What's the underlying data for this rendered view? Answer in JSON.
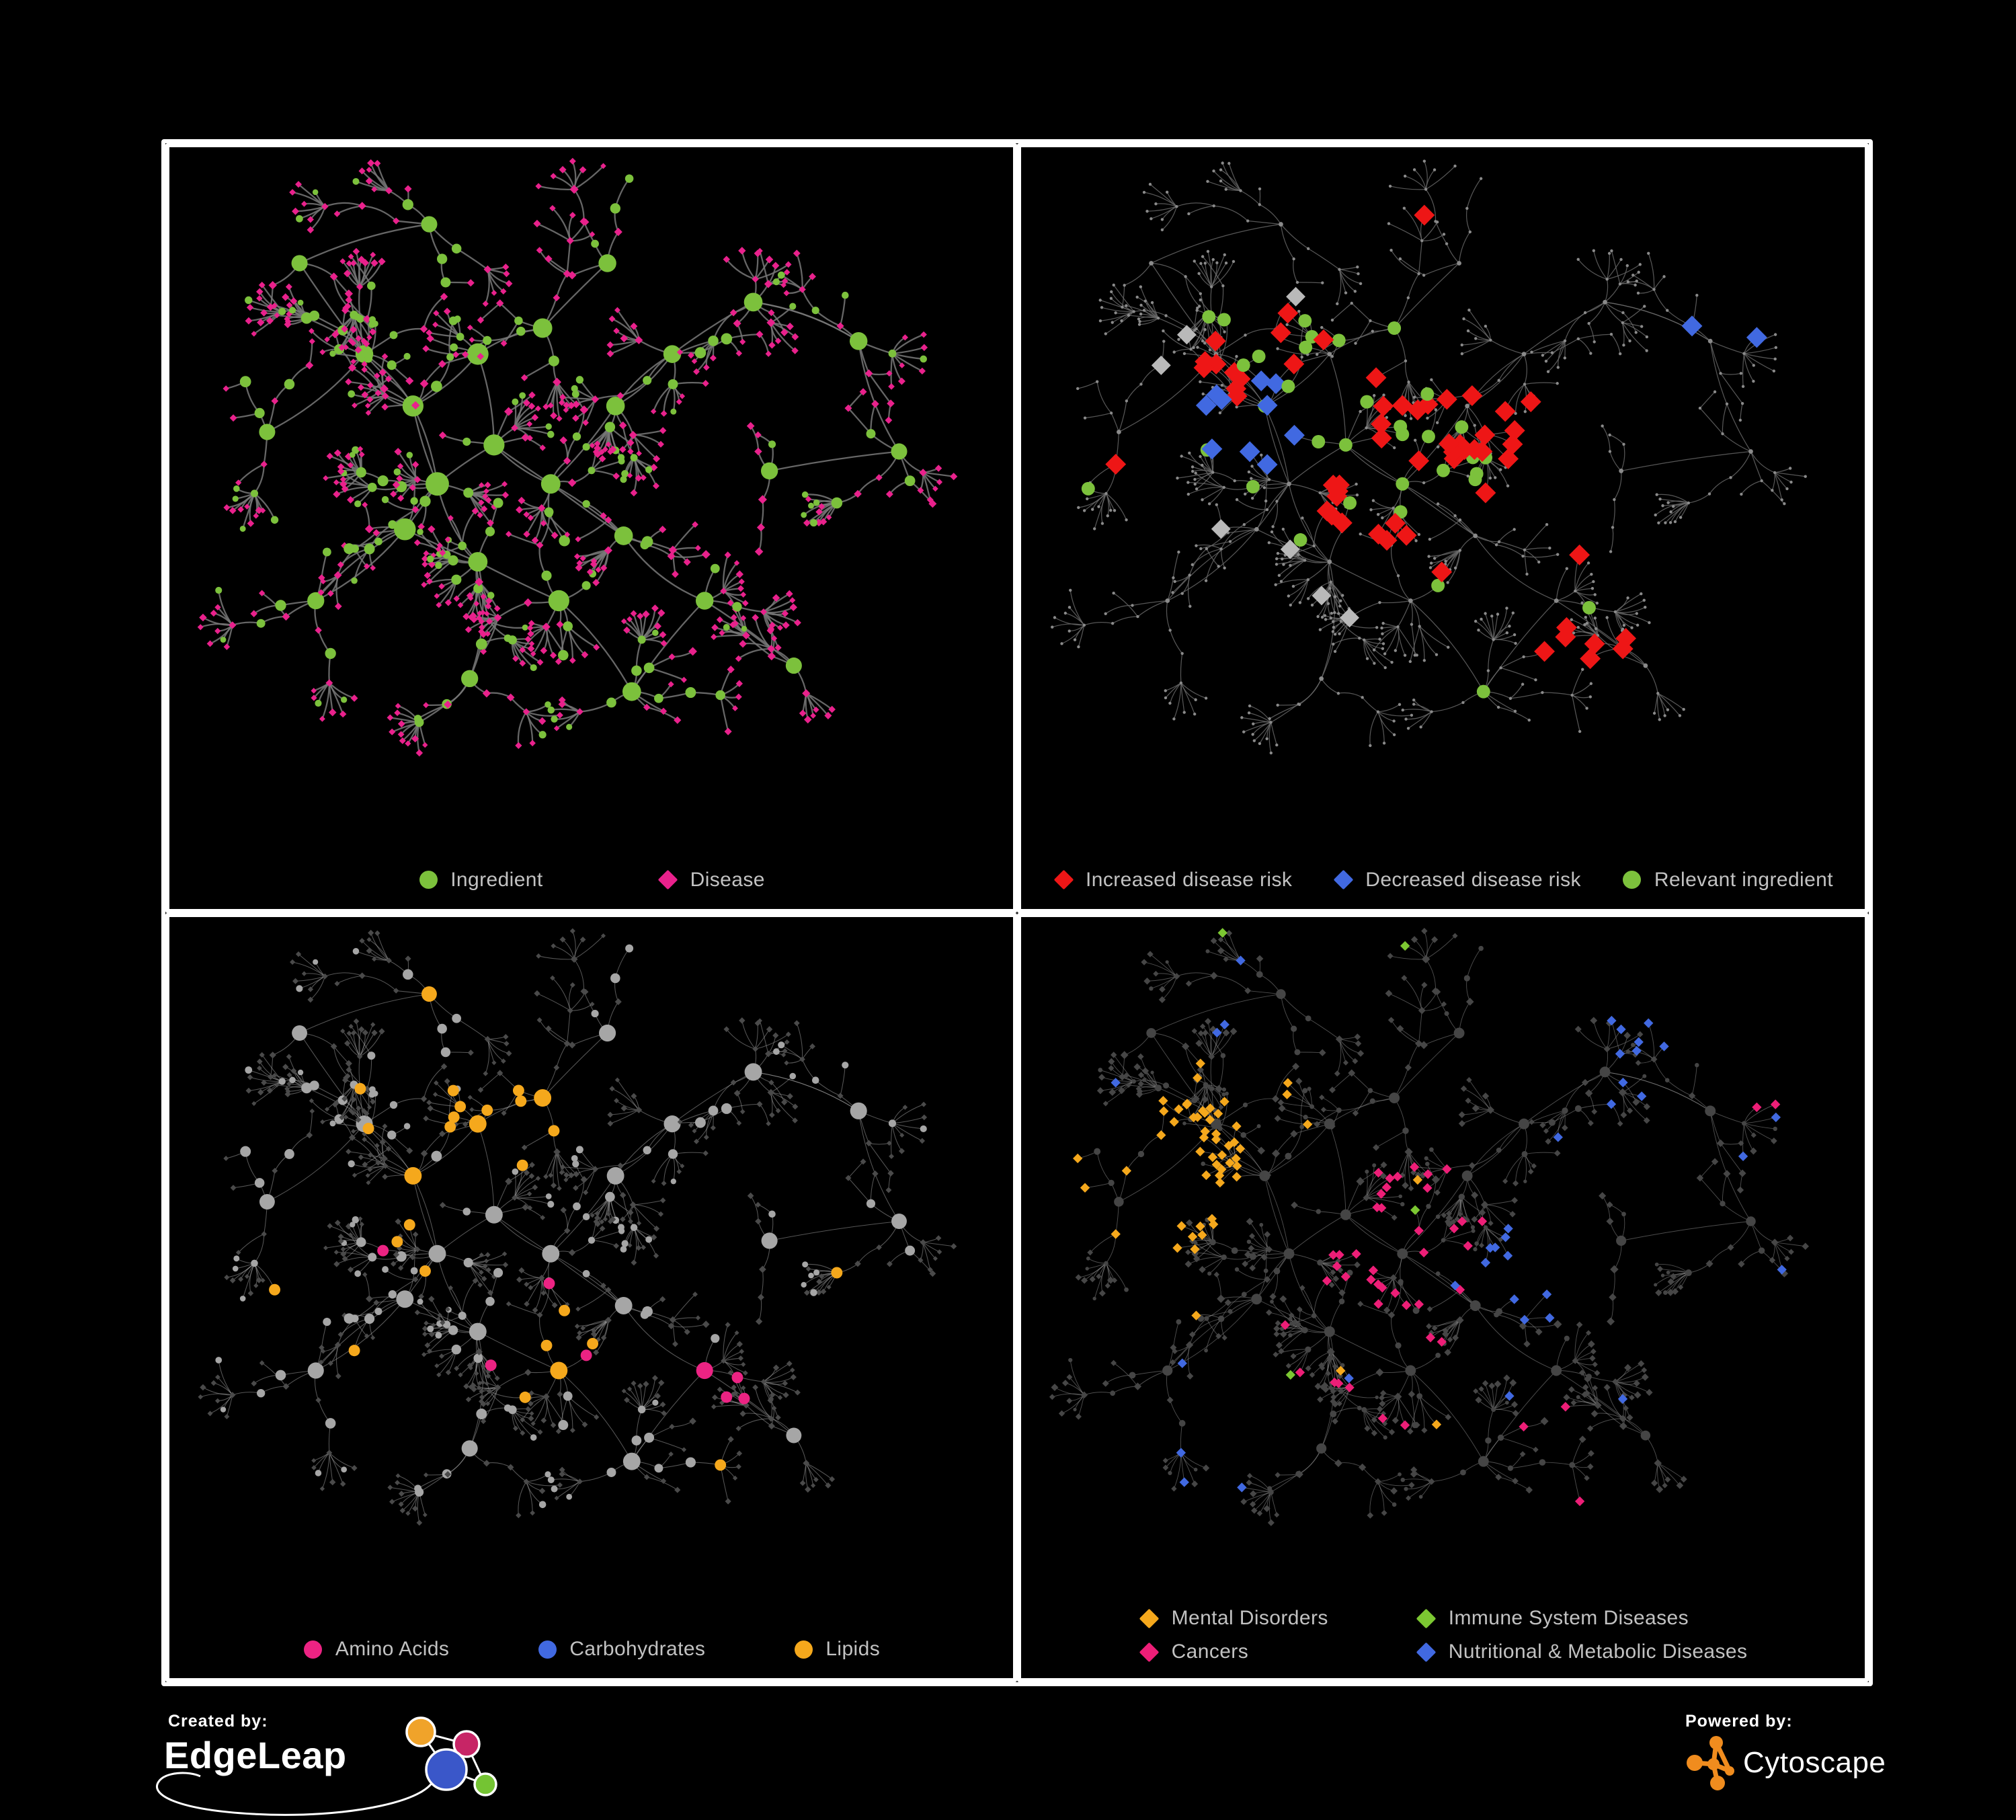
{
  "figure": {
    "background": "#000000",
    "frame_color": "#FFFFFF"
  },
  "footer": {
    "created_by": "Created by:",
    "edgeleap": "EdgeLeap",
    "powered_by": "Powered by:",
    "cytoscape": "Cytoscape",
    "edgeleap_logo_colors": {
      "yellow": "#F0A32A",
      "magenta": "#C72566",
      "blue": "#3A57C9",
      "green": "#74C433"
    },
    "cytoscape_logo_color": "#F08C1E"
  },
  "chart_data": {
    "type": "network",
    "layout": "four-panel grid, same force-directed ingredient-disease network styled four ways on black background",
    "topology": {
      "seed": 1337,
      "hubs": [
        [
          0.36,
          0.3,
          1.25
        ],
        [
          0.44,
          0.26,
          1.0
        ],
        [
          0.28,
          0.38,
          1.2
        ],
        [
          0.22,
          0.3,
          0.8
        ],
        [
          0.31,
          0.5,
          1.5
        ],
        [
          0.27,
          0.57,
          1.3
        ],
        [
          0.38,
          0.44,
          1.2
        ],
        [
          0.45,
          0.5,
          1.0
        ],
        [
          0.36,
          0.62,
          1.0
        ],
        [
          0.46,
          0.68,
          1.2
        ],
        [
          0.54,
          0.58,
          0.9
        ],
        [
          0.53,
          0.38,
          0.9
        ],
        [
          0.6,
          0.3,
          0.8
        ],
        [
          0.52,
          0.16,
          0.8
        ],
        [
          0.7,
          0.22,
          0.9
        ],
        [
          0.83,
          0.28,
          0.8
        ],
        [
          0.88,
          0.45,
          0.6
        ],
        [
          0.72,
          0.48,
          0.7
        ],
        [
          0.64,
          0.68,
          0.8
        ],
        [
          0.55,
          0.82,
          0.9
        ],
        [
          0.35,
          0.8,
          0.7
        ],
        [
          0.16,
          0.68,
          0.7
        ],
        [
          0.1,
          0.42,
          0.6
        ],
        [
          0.14,
          0.16,
          0.6
        ],
        [
          0.3,
          0.1,
          0.6
        ],
        [
          0.75,
          0.78,
          0.6
        ]
      ],
      "extra_links": [
        [
          0,
          6
        ],
        [
          2,
          4
        ],
        [
          6,
          7
        ],
        [
          4,
          8
        ],
        [
          7,
          10
        ],
        [
          11,
          12
        ],
        [
          9,
          19
        ],
        [
          5,
          21
        ],
        [
          14,
          15
        ]
      ],
      "branch_factor": [
        3.2,
        3.8
      ],
      "steps_max": 3,
      "step_len": [
        30,
        56
      ],
      "twig_p": 0.3,
      "fan_p": 0.55,
      "fan_leaves": [
        4,
        12
      ],
      "branch_ingredient_p": 0.42,
      "leaf_ingredient_p": 0.15,
      "node_cap": 980
    },
    "panels": [
      {
        "id": "ingredient-disease-network",
        "legend": [
          {
            "label": "Ingredient",
            "shape": "circle",
            "color": "#7CC13C"
          },
          {
            "label": "Disease",
            "shape": "diamond",
            "color": "#E9218C"
          }
        ],
        "legend_layout": "row-g1",
        "style": {
          "seed": 11,
          "mode": "plain",
          "edge": {
            "color": "#787878",
            "width": 2.3,
            "opacity": 0.85
          },
          "ingredient": {
            "color": "#7CC13C",
            "scale": 1.0,
            "max": 18
          },
          "disease": {
            "color": "#E9218C",
            "scale": 1.0,
            "max": 8
          }
        },
        "rules": []
      },
      {
        "id": "disease-risk-network",
        "legend": [
          {
            "label": "Increased disease risk",
            "shape": "diamond",
            "color": "#EE1616"
          },
          {
            "label": "Decreased disease risk",
            "shape": "diamond",
            "color": "#4169E1"
          },
          {
            "label": "Relevant ingredient",
            "shape": "circle",
            "color": "#7CC13C"
          }
        ],
        "legend_layout": "row-g2",
        "style": {
          "seed": 22,
          "mode": "dots",
          "edge": {
            "color": "#6C6C6C",
            "width": 1.25,
            "opacity": 0.8
          },
          "base": {
            "color": "#8A8A8A",
            "r": 2.2,
            "hub_r": 3.4
          }
        },
        "rules": [
          {
            "t": "d",
            "cx": 0.44,
            "cy": 0.42,
            "rad": 0.16,
            "p": 0.28,
            "color": "#EE1616",
            "shape": "diamond",
            "size": 15.5
          },
          {
            "t": "d",
            "cx": 0.58,
            "cy": 0.35,
            "rad": 0.1,
            "p": 0.12,
            "color": "#EE1616",
            "shape": "diamond",
            "size": 15.5
          },
          {
            "t": "d",
            "cx": 0.3,
            "cy": 0.33,
            "rad": 0.1,
            "p": 0.18,
            "color": "#EE1616",
            "shape": "diamond",
            "size": 15.5
          },
          {
            "t": "d",
            "cx": 0.47,
            "cy": 0.6,
            "rad": 0.1,
            "p": 0.15,
            "color": "#EE1616",
            "shape": "diamond",
            "size": 15.5
          },
          {
            "t": "d",
            "cx": 0.66,
            "cy": 0.74,
            "rad": 0.09,
            "p": 0.25,
            "color": "#EE1616",
            "shape": "diamond",
            "size": 15.5
          },
          {
            "t": "d",
            "cx": 0.25,
            "cy": 0.4,
            "rad": 0.08,
            "p": 0.45,
            "color": "#4169E1",
            "shape": "diamond",
            "size": 15.5
          },
          {
            "t": "d",
            "cx": 0.84,
            "cy": 0.26,
            "rad": 0.05,
            "p": 0.9,
            "color": "#4169E1",
            "shape": "diamond",
            "size": 15.5
          },
          {
            "t": "d",
            "cx": 0.38,
            "cy": 0.45,
            "rad": 0.28,
            "p": 0.035,
            "color": "#B9B9B9",
            "shape": "diamond",
            "size": 14.5
          },
          {
            "t": "d",
            "cx": 0.5,
            "cy": 0.45,
            "rad": 0.45,
            "p": 0.012,
            "color": "#EE1616",
            "shape": "diamond",
            "size": 15.5
          },
          {
            "t": "i",
            "cx": 0.43,
            "cy": 0.42,
            "rad": 0.2,
            "p": 0.3,
            "color": "#7CC13C",
            "shape": "circle",
            "size": 10
          },
          {
            "t": "i",
            "cx": 0.27,
            "cy": 0.38,
            "rad": 0.12,
            "p": 0.25,
            "color": "#7CC13C",
            "shape": "circle",
            "size": 10
          },
          {
            "t": "i",
            "cx": 0.5,
            "cy": 0.5,
            "rad": 0.5,
            "p": 0.02,
            "color": "#7CC13C",
            "shape": "circle",
            "size": 10
          }
        ]
      },
      {
        "id": "nutrient-class-network",
        "legend": [
          {
            "label": "Amino Acids",
            "shape": "circle",
            "color": "#EC2383"
          },
          {
            "label": "Carbohydrates",
            "shape": "circle",
            "color": "#4169E1"
          },
          {
            "label": "Lipids",
            "shape": "circle",
            "color": "#F5A81C"
          }
        ],
        "legend_layout": "row-g3",
        "style": {
          "seed": 33,
          "mode": "plain",
          "edge": {
            "color": "#ABABAB",
            "width": 1.05,
            "opacity": 0.5
          },
          "ingredient": {
            "color": "#A6A6A6",
            "scale": 0.95,
            "max": 13
          },
          "disease": {
            "color": "#4A4A4A",
            "scale": 0.82,
            "max": 6.5
          }
        },
        "rules": [
          {
            "t": "i",
            "cx": 0.4,
            "cy": 0.26,
            "rad": 0.09,
            "p": 0.8,
            "color": "#F5A81C",
            "shape": "circle",
            "size": 8.5
          },
          {
            "t": "i",
            "cx": 0.41,
            "cy": 0.28,
            "rad": 0.08,
            "p": 0.45,
            "color": "#4169E1",
            "shape": "circle",
            "size": 8.5
          },
          {
            "t": "i",
            "cx": 0.33,
            "cy": 0.43,
            "rad": 0.12,
            "p": 0.25,
            "color": "#F5A81C",
            "shape": "circle",
            "size": 8.5
          },
          {
            "t": "i",
            "cx": 0.5,
            "cy": 0.63,
            "rad": 0.07,
            "p": 0.7,
            "color": "#F5A81C",
            "shape": "circle",
            "size": 8.5
          },
          {
            "t": "i",
            "cx": 0.74,
            "cy": 0.74,
            "rad": 0.13,
            "p": 0.35,
            "color": "#EC2383",
            "shape": "circle",
            "size": 8.5
          },
          {
            "t": "i",
            "cx": 0.5,
            "cy": 0.4,
            "rad": 0.5,
            "p": 0.05,
            "color": "#F5A81C",
            "shape": "circle",
            "size": 8.5
          },
          {
            "t": "i",
            "cx": 0.2,
            "cy": 0.6,
            "rad": 0.3,
            "p": 0.05,
            "color": "#EC2383",
            "shape": "circle",
            "size": 8.5
          },
          {
            "t": "i",
            "cx": 0.5,
            "cy": 0.35,
            "rad": 0.45,
            "p": 0.03,
            "color": "#EC2383",
            "shape": "circle",
            "size": 8.5
          },
          {
            "t": "i",
            "cx": 0.5,
            "cy": 0.5,
            "rad": 0.5,
            "p": 0.015,
            "color": "#4169E1",
            "shape": "circle",
            "size": 8.5
          }
        ]
      },
      {
        "id": "disease-category-network",
        "legend": [
          {
            "label": "Mental Disorders",
            "shape": "diamond",
            "color": "#F5A81C"
          },
          {
            "label": "Immune System Diseases",
            "shape": "diamond",
            "color": "#7CC832"
          },
          {
            "label": "Cancers",
            "shape": "diamond",
            "color": "#ED1E77"
          },
          {
            "label": "Nutritional & Metabolic Diseases",
            "shape": "diamond",
            "color": "#4169E1"
          }
        ],
        "legend_layout": "grid2",
        "style": {
          "seed": 44,
          "mode": "plain",
          "edge": {
            "color": "#9A9A9A",
            "width": 0.95,
            "opacity": 0.5
          },
          "ingredient": {
            "color": "#454545",
            "scale": 0.6,
            "max": 8
          },
          "disease": {
            "color": "#464646",
            "scale": 0.95,
            "max": 7
          }
        },
        "rules": [
          {
            "t": "d",
            "cx": 0.155,
            "cy": 0.38,
            "rad": 0.12,
            "p": 0.85,
            "color": "#F5A81C",
            "shape": "diamond",
            "size": 7.2
          },
          {
            "t": "d",
            "cx": 0.25,
            "cy": 0.28,
            "rad": 0.1,
            "p": 0.25,
            "color": "#F5A81C",
            "shape": "diamond",
            "size": 7.2
          },
          {
            "t": "d",
            "cx": 0.33,
            "cy": 0.09,
            "rad": 0.07,
            "p": 0.35,
            "color": "#F5A81C",
            "shape": "diamond",
            "size": 7.2
          },
          {
            "t": "d",
            "cx": 0.44,
            "cy": 0.47,
            "rad": 0.12,
            "p": 0.5,
            "color": "#ED1E77",
            "shape": "diamond",
            "size": 7.2
          },
          {
            "t": "d",
            "cx": 0.4,
            "cy": 0.62,
            "rad": 0.1,
            "p": 0.2,
            "color": "#ED1E77",
            "shape": "diamond",
            "size": 7.2
          },
          {
            "t": "d",
            "cx": 0.88,
            "cy": 0.24,
            "rad": 0.06,
            "p": 0.6,
            "color": "#ED1E77",
            "shape": "diamond",
            "size": 7.2
          },
          {
            "t": "d",
            "cx": 0.62,
            "cy": 0.53,
            "rad": 0.08,
            "p": 0.8,
            "color": "#4169E1",
            "shape": "diamond",
            "size": 7.2
          },
          {
            "t": "d",
            "cx": 0.72,
            "cy": 0.14,
            "rad": 0.1,
            "p": 0.4,
            "color": "#4169E1",
            "shape": "diamond",
            "size": 7.2
          },
          {
            "t": "d",
            "cx": 0.82,
            "cy": 0.34,
            "rad": 0.12,
            "p": 0.25,
            "color": "#4169E1",
            "shape": "diamond",
            "size": 7.2
          },
          {
            "t": "d",
            "cx": 0.3,
            "cy": 0.12,
            "rad": 0.1,
            "p": 0.15,
            "color": "#4169E1",
            "shape": "diamond",
            "size": 7.2
          },
          {
            "t": "d",
            "cx": 0.2,
            "cy": 0.8,
            "rad": 0.15,
            "p": 0.08,
            "color": "#4169E1",
            "shape": "diamond",
            "size": 7.2
          },
          {
            "t": "d",
            "cx": 0.5,
            "cy": 0.75,
            "rad": 0.3,
            "p": 0.03,
            "color": "#ED1E77",
            "shape": "diamond",
            "size": 7.2
          },
          {
            "t": "d",
            "cx": 0.5,
            "cy": 0.5,
            "rad": 0.6,
            "p": 0.02,
            "color": "#4169E1",
            "shape": "diamond",
            "size": 7.2
          },
          {
            "t": "d",
            "cx": 0.5,
            "cy": 0.5,
            "rad": 0.6,
            "p": 0.013,
            "color": "#7CC832",
            "shape": "diamond",
            "size": 7.2
          },
          {
            "t": "d",
            "cx": 0.5,
            "cy": 0.5,
            "rad": 0.6,
            "p": 0.015,
            "color": "#F5A81C",
            "shape": "diamond",
            "size": 7.2
          }
        ]
      }
    ]
  }
}
